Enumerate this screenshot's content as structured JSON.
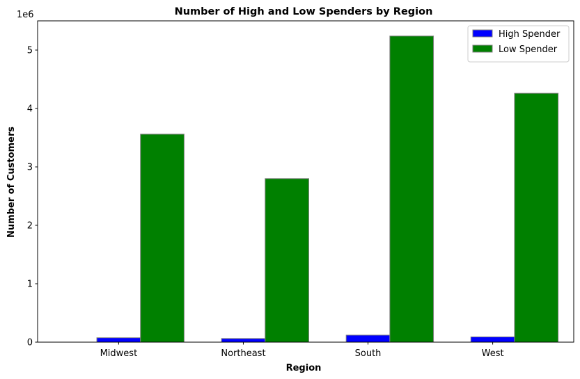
{
  "chart_data": {
    "type": "bar",
    "title": "Number of High and Low Spenders by Region",
    "xlabel": "Region",
    "ylabel": "Number of Customers",
    "y_offset_label": "1e6",
    "categories": [
      "Midwest",
      "Northeast",
      "South",
      "West"
    ],
    "series": [
      {
        "name": "High Spender",
        "color": "#0000ff",
        "values": [
          75000,
          62000,
          120000,
          90000
        ]
      },
      {
        "name": "Low Spender",
        "color": "#008000",
        "values": [
          3560000,
          2800000,
          5240000,
          4260000
        ]
      }
    ],
    "ylim": [
      0,
      5500000
    ],
    "yticks": [
      0,
      1000000,
      2000000,
      3000000,
      4000000,
      5000000
    ],
    "ytick_labels": [
      "0",
      "1",
      "2",
      "3",
      "4",
      "5"
    ],
    "bar_edge_color": "#808080",
    "legend_position": "top-right",
    "grid": false
  }
}
